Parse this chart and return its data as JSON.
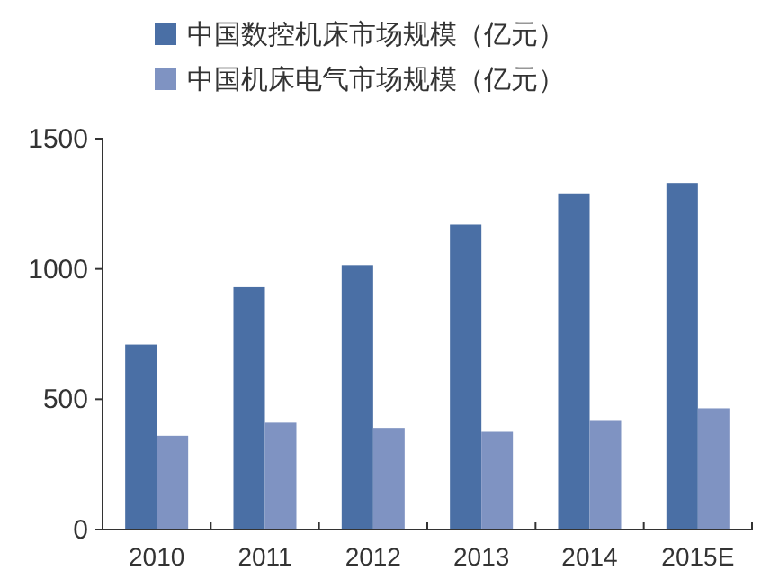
{
  "chart_data": {
    "type": "bar",
    "categories": [
      "2010",
      "2011",
      "2012",
      "2013",
      "2014",
      "2015E"
    ],
    "series": [
      {
        "name": "中国数控机床市场规模（亿元）",
        "color": "#4a6fa5",
        "values": [
          710,
          930,
          1015,
          1170,
          1290,
          1330
        ]
      },
      {
        "name": "中国机床电气市场规模（亿元）",
        "color": "#7f93c2",
        "values": [
          360,
          410,
          390,
          375,
          420,
          465
        ]
      }
    ],
    "ylim": [
      0,
      1500
    ],
    "yticks": [
      0,
      500,
      1000,
      1500
    ],
    "grid": false,
    "legend": "top left"
  }
}
